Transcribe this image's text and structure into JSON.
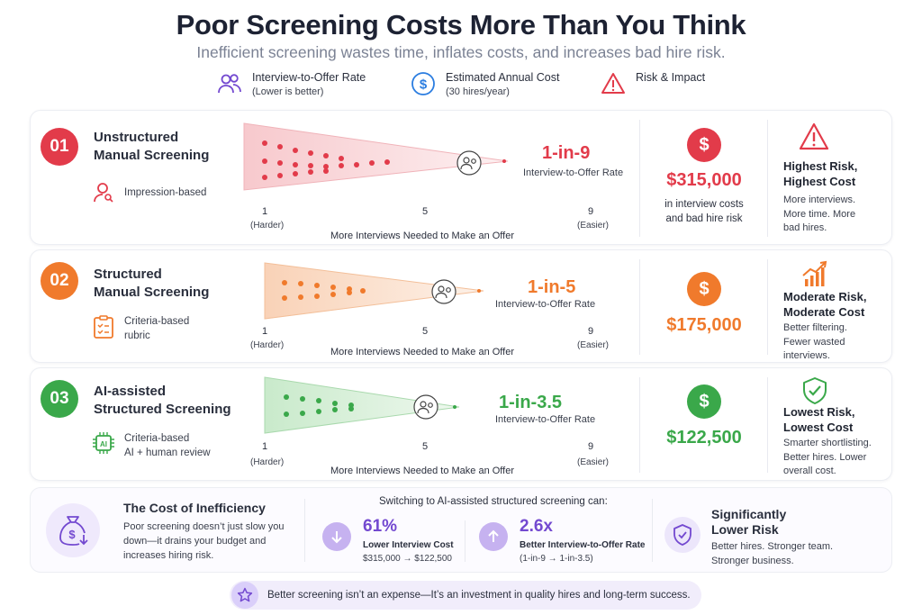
{
  "header": {
    "title": "Poor Screening Costs More Than You Think",
    "subtitle": "Inefficient screening wastes time, inflates costs, and increases bad hire risk."
  },
  "legend": [
    {
      "label": "Interview-to-Offer Rate",
      "sub": "(Lower is better)",
      "icon": "people-icon"
    },
    {
      "label": "Estimated Annual Cost",
      "sub": "(30 hires/year)",
      "icon": "dollar-icon"
    },
    {
      "label": "Risk & Impact",
      "sub": "",
      "icon": "warning-icon"
    }
  ],
  "axis": {
    "min": "1",
    "mid": "5",
    "max": "9",
    "min_label": "(Harder)",
    "max_label": "(Easier)",
    "caption": "More Interviews Needed to Make an Offer"
  },
  "rows": [
    {
      "num": "01",
      "name_line1": "Unstructured",
      "name_line2": "Manual Screening",
      "tag_line1": "Impression-based",
      "tag_line2": "",
      "rate": "1-in-9",
      "rate_sub": "Interview-to-Offer Rate",
      "cost": "$315,000",
      "cost_desc_line1": "in interview costs",
      "cost_desc_line2": "and bad hire risk",
      "risk_title_line1": "Highest Risk,",
      "risk_title_line2": "Highest Cost",
      "risk_desc_line1": "More interviews.",
      "risk_desc_line2": "More time. More",
      "risk_desc_line3": "bad hires.",
      "color": "#e23b4a",
      "accent_light": "#fbe3e5"
    },
    {
      "num": "02",
      "name_line1": "Structured",
      "name_line2": "Manual Screening",
      "tag_line1": "Criteria-based",
      "tag_line2": "rubric",
      "rate": "1-in-5",
      "rate_sub": "Interview-to-Offer Rate",
      "cost": "$175,000",
      "cost_desc_line1": "",
      "cost_desc_line2": "",
      "risk_title_line1": "Moderate Risk,",
      "risk_title_line2": "Moderate Cost",
      "risk_desc_line1": "Better filtering.",
      "risk_desc_line2": "Fewer wasted",
      "risk_desc_line3": "interviews.",
      "color": "#f07a2c",
      "accent_light": "#fde9db"
    },
    {
      "num": "03",
      "name_line1": "AI-assisted",
      "name_line2": "Structured Screening",
      "tag_line1": "Criteria-based",
      "tag_line2": "AI + human review",
      "rate": "1-in-3.5",
      "rate_sub": "Interview-to-Offer Rate",
      "cost": "$122,500",
      "cost_desc_line1": "",
      "cost_desc_line2": "",
      "risk_title_line1": "Lowest Risk,",
      "risk_title_line2": "Lowest Cost",
      "risk_desc_line1": "Smarter shortlisting.",
      "risk_desc_line2": "Better hires. Lower",
      "risk_desc_line3": "overall cost.",
      "color": "#3aa84a",
      "accent_light": "#e1f3e2"
    }
  ],
  "summary": {
    "title": "The Cost of Inefficiency",
    "desc_line1": "Poor screening doesn’t just slow you",
    "desc_line2": "down—it drains your budget and",
    "desc_line3": "increases hiring risk.",
    "switch_caption": "Switching to AI-assisted structured screening can:",
    "stat1": {
      "value": "61%",
      "label": "Lower Interview Cost",
      "sub": "$315,000 → $122,500"
    },
    "stat2": {
      "value": "2.6x",
      "label": "Better Interview-to-Offer Rate",
      "sub": "(1-in-9 → 1-in-3.5)"
    },
    "risk_title_line1": "Significantly",
    "risk_title_line2": "Lower Risk",
    "risk_desc_line1": "Better hires. Stronger team.",
    "risk_desc_line2": "Stronger business."
  },
  "footer": {
    "text": "Better screening isn’t an expense—It’s an investment in quality hires and long-term success."
  },
  "colors": {
    "purple": "#7349d0",
    "red": "#e23b4a",
    "orange": "#f07a2c",
    "green": "#3aa84a",
    "blue": "#2b7de0"
  }
}
